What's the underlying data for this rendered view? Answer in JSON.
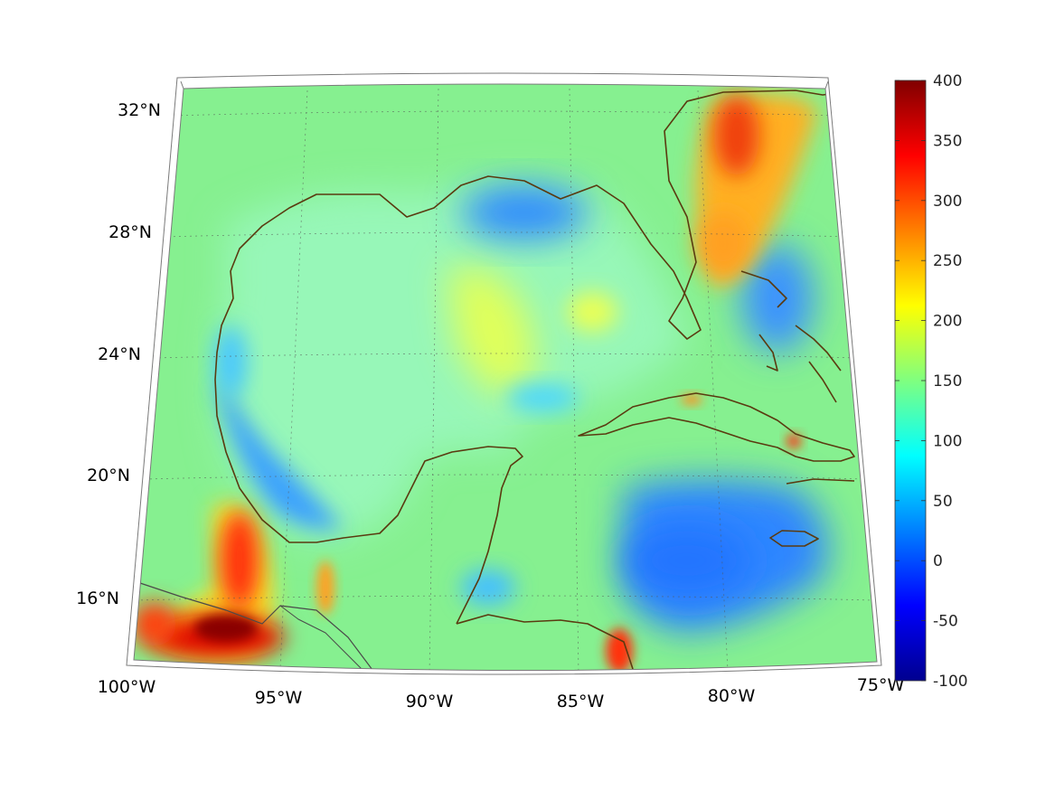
{
  "map": {
    "region": "Gulf of Mexico and Caribbean",
    "projection": "conic",
    "longitude_range": [
      -100,
      -75
    ],
    "latitude_range": [
      14.5,
      33
    ],
    "gridlines": true
  },
  "axes": {
    "lon_ticks": [
      "100°W",
      "95°W",
      "90°W",
      "85°W",
      "80°W",
      "75°W"
    ],
    "lat_ticks": [
      "32°N",
      "28°N",
      "24°N",
      "20°N",
      "16°N"
    ]
  },
  "colorbar": {
    "colormap": "jet",
    "min": -100,
    "max": 400,
    "tick_labels": [
      "400",
      "350",
      "300",
      "250",
      "200",
      "150",
      "100",
      "50",
      "0",
      "-50",
      "-100"
    ],
    "tick_values": [
      400,
      350,
      300,
      250,
      200,
      150,
      100,
      50,
      0,
      -50,
      -100
    ]
  },
  "colors": {
    "coastline": "#5a3a10",
    "background_field": "#7cf08a",
    "gulf_field": "#8ff5c8",
    "high_values": "#b00000",
    "low_values": "#1f7fff"
  }
}
